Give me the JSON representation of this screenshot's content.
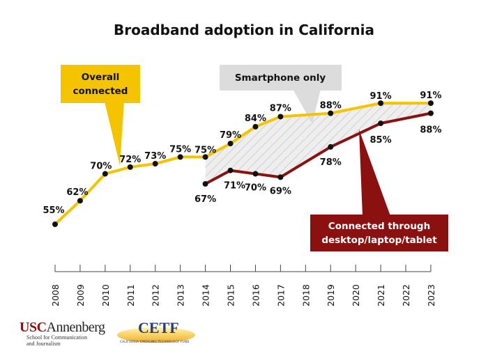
{
  "chart_data": {
    "type": "line",
    "title": "Broadband adoption in California",
    "x_ticks": [
      "2008",
      "2009",
      "2010",
      "2011",
      "2012",
      "2013",
      "2014",
      "2015",
      "2016",
      "2017",
      "2018",
      "2019",
      "2020",
      "2021",
      "2022",
      "2023"
    ],
    "grid": false,
    "series": [
      {
        "name": "Overall connected",
        "color": "#f5c400",
        "x": [
          2008,
          2009,
          2010,
          2011,
          2012,
          2013,
          2014,
          2015,
          2016,
          2017,
          2019,
          2021,
          2023
        ],
        "values": [
          55,
          62,
          70,
          72,
          73,
          75,
          75,
          79,
          84,
          87,
          88,
          91,
          91
        ]
      },
      {
        "name": "Connected through desktop/laptop/tablet",
        "color": "#8b1010",
        "x": [
          2014,
          2015,
          2016,
          2017,
          2019,
          2021,
          2023
        ],
        "values": [
          67,
          71,
          70,
          69,
          78,
          85,
          88
        ]
      }
    ],
    "annotations": {
      "overall_line1": "Overall",
      "overall_line2": "connected",
      "smartphone": "Smartphone only",
      "desktop_line1": "Connected through",
      "desktop_line2": "desktop/laptop/tablet"
    },
    "value_suffix": "%"
  },
  "logos": {
    "usc": "USCAnnenberg",
    "usc_sub1": "School for Communication",
    "usc_sub2": "and Journalism",
    "cetf": "CETF",
    "cetf_sub": "CALIFORNIA EMERGING TECHNOLOGY FUND"
  }
}
